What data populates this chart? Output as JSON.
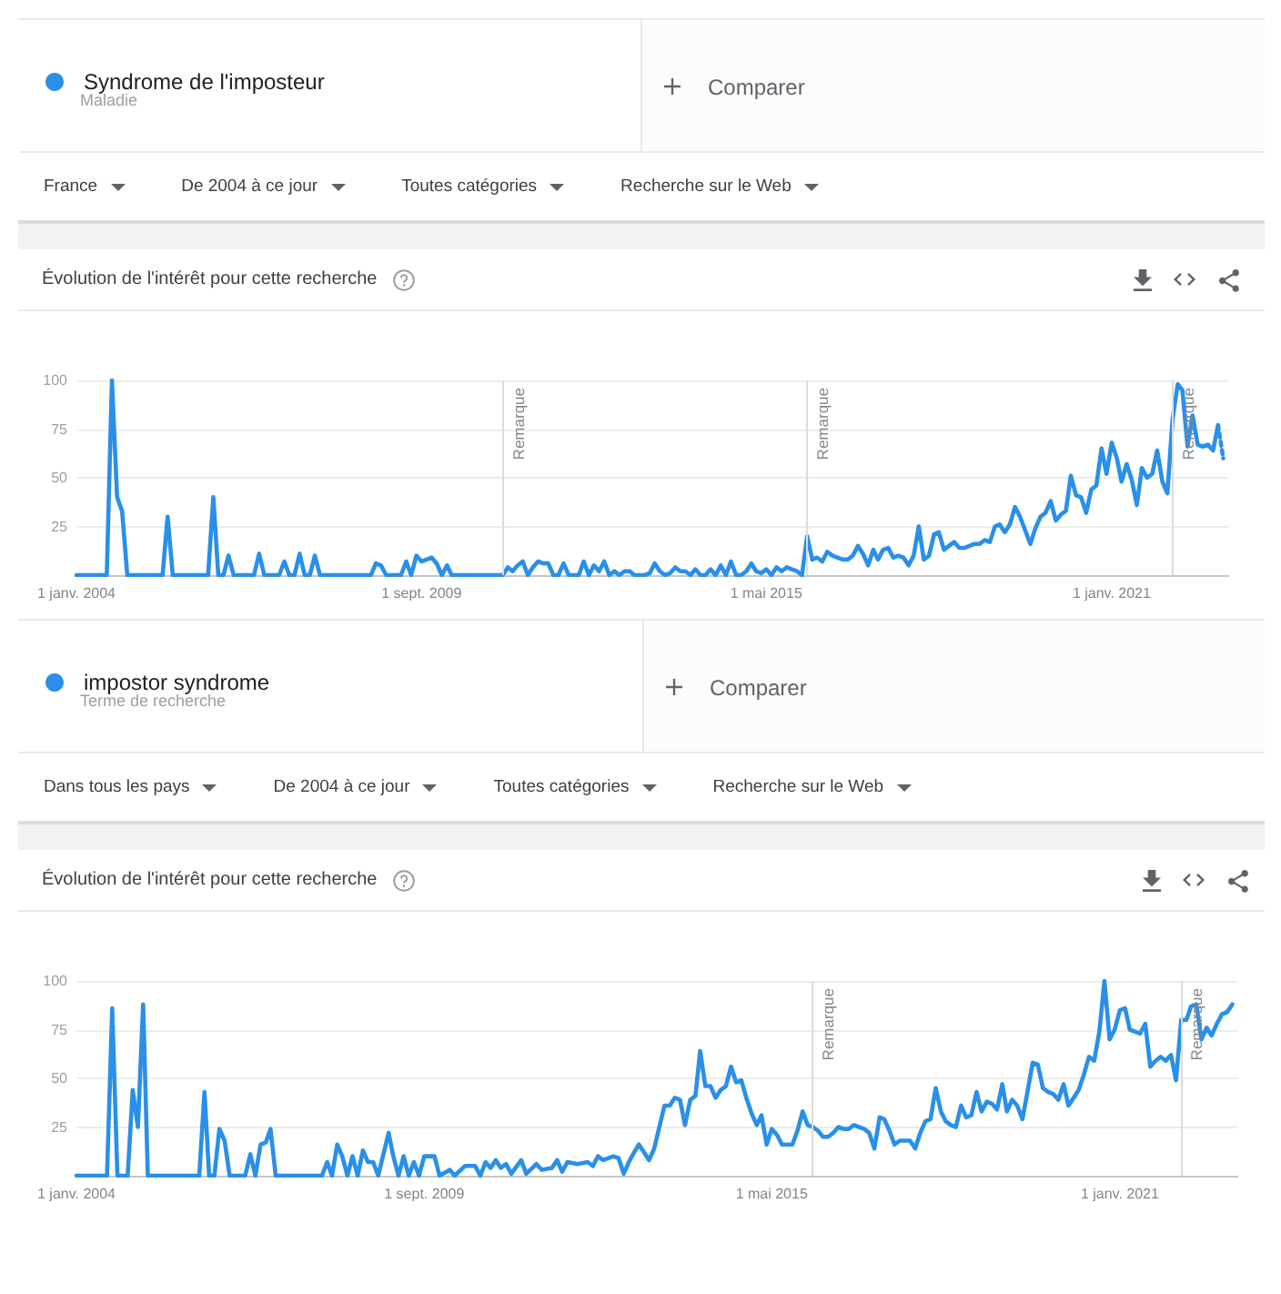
{
  "chart_data": [
    {
      "type": "line",
      "title": "Évolution de l'intérêt pour cette recherche",
      "annotations": [
        "Maladie",
        "Comparer",
        "France",
        "De 2004 à ce jour",
        "Toutes catégories",
        "Recherche sur le Web"
      ],
      "legend": "top left",
      "grid": "y",
      "xlim": [
        "2004-01",
        "2022-12"
      ],
      "xticks": [
        {
          "value": "2004-01",
          "label": "1 janv. 2004"
        },
        {
          "value": "2009-09",
          "label": "1 sept. 2009"
        },
        {
          "value": "2015-05",
          "label": "1 mai 2015"
        },
        {
          "value": "2021-01",
          "label": "1 janv. 2021"
        }
      ],
      "ylim": [
        0,
        100
      ],
      "yticks": [
        25,
        50,
        75,
        100
      ],
      "ref_lines": [
        {
          "axis": "x",
          "value": "2011-01",
          "label": "Remarque"
        },
        {
          "axis": "x",
          "value": "2016-01",
          "label": "Remarque"
        },
        {
          "axis": "x",
          "value": "2022-01",
          "label": "Remarque"
        }
      ],
      "series": [
        {
          "name": "Syndrome de l'imposteur",
          "color": "#2a8fe8",
          "x": [
            "2004-01",
            "2004-07",
            "2004-08",
            "2004-09",
            "2004-10",
            "2004-11",
            "2005-06",
            "2005-07",
            "2005-08",
            "2006-03",
            "2006-04",
            "2006-05",
            "2006-06",
            "2006-07",
            "2006-08",
            "2006-12",
            "2007-01",
            "2007-02",
            "2007-05",
            "2007-06",
            "2007-07",
            "2007-08",
            "2007-09",
            "2007-10",
            "2007-11",
            "2007-12",
            "2008-01",
            "2008-11",
            "2008-12",
            "2009-01",
            "2009-02",
            "2009-05",
            "2009-06",
            "2009-07",
            "2009-08",
            "2009-09",
            "2009-10",
            "2009-11",
            "2009-12",
            "2010-01",
            "2010-02",
            "2010-03",
            "2011-01",
            "2011-02",
            "2011-03",
            "2011-04",
            "2011-05",
            "2011-06",
            "2011-07",
            "2011-08",
            "2011-09",
            "2011-10",
            "2011-11",
            "2011-12",
            "2012-01",
            "2012-02",
            "2012-04",
            "2012-05",
            "2012-06",
            "2012-07",
            "2012-08",
            "2012-09",
            "2012-10",
            "2012-11",
            "2012-12",
            "2013-01",
            "2013-02",
            "2013-03",
            "2013-05",
            "2013-06",
            "2013-07",
            "2013-08",
            "2013-09",
            "2013-10",
            "2013-11",
            "2013-12",
            "2014-01",
            "2014-02",
            "2014-03",
            "2014-04",
            "2014-05",
            "2014-06",
            "2014-07",
            "2014-08",
            "2014-09",
            "2014-10",
            "2014-11",
            "2014-12",
            "2015-01",
            "2015-02",
            "2015-03",
            "2015-04",
            "2015-05",
            "2015-06",
            "2015-07",
            "2015-08",
            "2015-09",
            "2015-10",
            "2015-11",
            "2015-12",
            "2016-01",
            "2016-02",
            "2016-03",
            "2016-04",
            "2016-05",
            "2016-06",
            "2016-07",
            "2016-08",
            "2016-09",
            "2016-10",
            "2016-11",
            "2016-12",
            "2017-01",
            "2017-02",
            "2017-03",
            "2017-04",
            "2017-05",
            "2017-06",
            "2017-07",
            "2017-08",
            "2017-09",
            "2017-10",
            "2017-11",
            "2017-12",
            "2018-01",
            "2018-02",
            "2018-03",
            "2018-04",
            "2018-05",
            "2018-06",
            "2018-07",
            "2018-08",
            "2018-09",
            "2018-10",
            "2018-11",
            "2018-12",
            "2019-01",
            "2019-02",
            "2019-03",
            "2019-04",
            "2019-05",
            "2019-06",
            "2019-07",
            "2019-08",
            "2019-09",
            "2019-10",
            "2019-11",
            "2019-12",
            "2020-01",
            "2020-02",
            "2020-03",
            "2020-04",
            "2020-05",
            "2020-06",
            "2020-07",
            "2020-08",
            "2020-09",
            "2020-10",
            "2020-11",
            "2020-12",
            "2021-01",
            "2021-02",
            "2021-03",
            "2021-04",
            "2021-05",
            "2021-06",
            "2021-07",
            "2021-08",
            "2021-09",
            "2021-10",
            "2021-11",
            "2021-12",
            "2022-01",
            "2022-02",
            "2022-03",
            "2022-04",
            "2022-05",
            "2022-06",
            "2022-07",
            "2022-08",
            "2022-09",
            "2022-10"
          ],
          "values": [
            0,
            0,
            100,
            40,
            33,
            0,
            0,
            30,
            0,
            0,
            40,
            0,
            0,
            10,
            0,
            0,
            11,
            0,
            0,
            7,
            0,
            0,
            11,
            0,
            0,
            10,
            0,
            0,
            6,
            5,
            0,
            0,
            7,
            0,
            10,
            7,
            8,
            9,
            6,
            0,
            5,
            0,
            0,
            4,
            2,
            5,
            7,
            0,
            4,
            7,
            6,
            6,
            0,
            0,
            6,
            0,
            0,
            7,
            0,
            5,
            2,
            7,
            0,
            2,
            0,
            2,
            2,
            0,
            0,
            1,
            6,
            2,
            0,
            1,
            4,
            2,
            2,
            0,
            3,
            0,
            0,
            3,
            0,
            5,
            0,
            7,
            0,
            0,
            2,
            6,
            2,
            1,
            3,
            0,
            4,
            2,
            4,
            3,
            2,
            0,
            20,
            8,
            9,
            7,
            12,
            10,
            9,
            8,
            8,
            10,
            15,
            11,
            5,
            13,
            8,
            13,
            14,
            9,
            10,
            9,
            5,
            10,
            25,
            8,
            10,
            21,
            22,
            13,
            15,
            17,
            14,
            14,
            15,
            16,
            16,
            18,
            17,
            25,
            26,
            22,
            26,
            35,
            30,
            23,
            16,
            24,
            30,
            32,
            38,
            28,
            31,
            33,
            51,
            41,
            40,
            32,
            44,
            46,
            65,
            52,
            68,
            60,
            48,
            57,
            49,
            36,
            55,
            50,
            52,
            64,
            48,
            42,
            80,
            98,
            95,
            66,
            82,
            67,
            66,
            67,
            64,
            77
          ]
        },
        {
          "color": "#2a8fe8",
          "line_style": "dotted",
          "x": [
            "2022-10",
            "2022-11"
          ],
          "values": [
            77,
            60
          ]
        }
      ]
    },
    {
      "type": "line",
      "title": "Évolution de l'intérêt pour cette recherche",
      "annotations": [
        "Terme de recherche",
        "Comparer",
        "Dans tous les pays",
        "De 2004 à ce jour",
        "Toutes catégories",
        "Recherche sur le Web"
      ],
      "legend": "top left",
      "grid": "y",
      "xlim": [
        "2004-01",
        "2022-12"
      ],
      "xticks": [
        {
          "value": "2004-01",
          "label": "1 janv. 2004"
        },
        {
          "value": "2009-09",
          "label": "1 sept. 2009"
        },
        {
          "value": "2015-05",
          "label": "1 mai 2015"
        },
        {
          "value": "2021-01",
          "label": "1 janv. 2021"
        }
      ],
      "ylim": [
        0,
        100
      ],
      "yticks": [
        25,
        50,
        75,
        100
      ],
      "ref_lines": [
        {
          "axis": "x",
          "value": "2016-01",
          "label": "Remarque"
        },
        {
          "axis": "x",
          "value": "2022-01",
          "label": "Remarque"
        }
      ],
      "series": [
        {
          "name": "impostor syndrome",
          "color": "#2a8fe8",
          "x": [
            "2004-01",
            "2004-07",
            "2004-08",
            "2004-09",
            "2004-11",
            "2004-12",
            "2005-01",
            "2005-02",
            "2005-03",
            "2006-01",
            "2006-02",
            "2006-03",
            "2006-04",
            "2006-05",
            "2006-06",
            "2006-07",
            "2006-10",
            "2006-11",
            "2006-12",
            "2007-01",
            "2007-02",
            "2007-03",
            "2007-04",
            "2008-01",
            "2008-02",
            "2008-03",
            "2008-04",
            "2008-05",
            "2008-06",
            "2008-07",
            "2008-08",
            "2008-09",
            "2008-10",
            "2008-11",
            "2008-12",
            "2009-02",
            "2009-03",
            "2009-04",
            "2009-05",
            "2009-06",
            "2009-07",
            "2009-08",
            "2009-09",
            "2009-11",
            "2009-12",
            "2010-02",
            "2010-03",
            "2010-05",
            "2010-06",
            "2010-07",
            "2010-08",
            "2010-09",
            "2010-10",
            "2010-11",
            "2010-12",
            "2011-01",
            "2011-02",
            "2011-04",
            "2011-05",
            "2011-07",
            "2011-08",
            "2011-10",
            "2011-11",
            "2011-12",
            "2012-01",
            "2012-03",
            "2012-05",
            "2012-06",
            "2012-07",
            "2012-08",
            "2012-10",
            "2012-11",
            "2012-12",
            "2013-01",
            "2013-02",
            "2013-03",
            "2013-04",
            "2013-05",
            "2013-06",
            "2013-07",
            "2013-08",
            "2013-09",
            "2013-10",
            "2013-11",
            "2013-12",
            "2014-01",
            "2014-02",
            "2014-03",
            "2014-04",
            "2014-05",
            "2014-06",
            "2014-07",
            "2014-08",
            "2014-09",
            "2014-10",
            "2014-11",
            "2014-12",
            "2015-01",
            "2015-02",
            "2015-03",
            "2015-04",
            "2015-05",
            "2015-06",
            "2015-07",
            "2015-08",
            "2015-09",
            "2015-10",
            "2015-11",
            "2015-12",
            "2016-01",
            "2016-02",
            "2016-03",
            "2016-04",
            "2016-05",
            "2016-06",
            "2016-07",
            "2016-08",
            "2016-09",
            "2016-10",
            "2016-11",
            "2016-12",
            "2017-01",
            "2017-02",
            "2017-03",
            "2017-04",
            "2017-05",
            "2017-06",
            "2017-07",
            "2017-08",
            "2017-09",
            "2017-10",
            "2017-11",
            "2017-12",
            "2018-01",
            "2018-02",
            "2018-03",
            "2018-04",
            "2018-05",
            "2018-06",
            "2018-07",
            "2018-08",
            "2018-09",
            "2018-10",
            "2018-11",
            "2018-12",
            "2019-01",
            "2019-02",
            "2019-03",
            "2019-04",
            "2019-05",
            "2019-06",
            "2019-07",
            "2019-08",
            "2019-09",
            "2019-10",
            "2019-11",
            "2019-12",
            "2020-01",
            "2020-02",
            "2020-03",
            "2020-04",
            "2020-05",
            "2020-06",
            "2020-07",
            "2020-08",
            "2020-09",
            "2020-10",
            "2020-11",
            "2020-12",
            "2021-01",
            "2021-02",
            "2021-03",
            "2021-04",
            "2021-05",
            "2021-06",
            "2021-07",
            "2021-08",
            "2021-09",
            "2021-10",
            "2021-11",
            "2021-12",
            "2022-01",
            "2022-02",
            "2022-03",
            "2022-04",
            "2022-05",
            "2022-06",
            "2022-07",
            "2022-08",
            "2022-09",
            "2022-10",
            "2022-11"
          ],
          "values": [
            0,
            0,
            86,
            0,
            0,
            44,
            25,
            88,
            0,
            0,
            43,
            0,
            0,
            24,
            18,
            0,
            0,
            11,
            0,
            16,
            17,
            24,
            0,
            0,
            7,
            0,
            16,
            10,
            0,
            10,
            0,
            13,
            7,
            7,
            0,
            22,
            10,
            0,
            10,
            0,
            7,
            0,
            10,
            10,
            0,
            3,
            0,
            5,
            5,
            5,
            0,
            7,
            4,
            8,
            4,
            6,
            1,
            8,
            1,
            6,
            3,
            4,
            8,
            2,
            7,
            6,
            7,
            5,
            10,
            8,
            10,
            9,
            1,
            7,
            12,
            16,
            12,
            8,
            14,
            25,
            36,
            36,
            40,
            39,
            26,
            39,
            41,
            64,
            46,
            46,
            40,
            44,
            46,
            56,
            48,
            49,
            40,
            32,
            26,
            31,
            16,
            24,
            21,
            16,
            16,
            16,
            23,
            33,
            26,
            25,
            23,
            20,
            20,
            22,
            25,
            24,
            24,
            26,
            25,
            24,
            22,
            14,
            30,
            29,
            23,
            16,
            18,
            18,
            18,
            14,
            22,
            28,
            29,
            45,
            33,
            28,
            26,
            25,
            36,
            30,
            31,
            43,
            33,
            38,
            37,
            34,
            47,
            33,
            39,
            36,
            29,
            43,
            58,
            57,
            45,
            43,
            42,
            39,
            47,
            36,
            40,
            44,
            52,
            61,
            59,
            74,
            100,
            70,
            75,
            85,
            86,
            75,
            74,
            73,
            78,
            56,
            59,
            61,
            59,
            62,
            49,
            80,
            80,
            87,
            88,
            70,
            76,
            72,
            78,
            83,
            84,
            88
          ]
        }
      ]
    }
  ]
}
